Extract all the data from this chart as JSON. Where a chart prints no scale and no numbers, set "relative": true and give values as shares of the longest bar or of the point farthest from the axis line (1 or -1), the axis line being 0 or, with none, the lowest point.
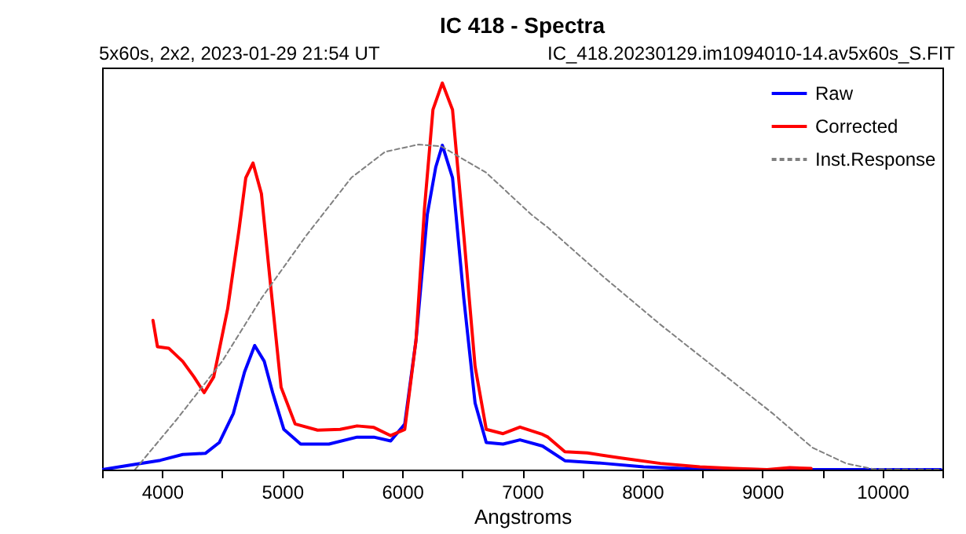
{
  "chart_data": {
    "type": "line",
    "title": "IC 418 - Spectra",
    "subtitle": "5x60s, 2x2, 2023-01-29 21:54 UT",
    "annotations": [
      "IC_418.20230129.im1094010-14.av5x60s_S.FIT"
    ],
    "xlabel": "Angstroms",
    "relative": true,
    "xlim": [
      3500,
      10500
    ],
    "xticks": [
      {
        "value": 3500,
        "label": null
      },
      4000,
      {
        "value": 4500,
        "label": null
      },
      5000,
      {
        "value": 5500,
        "label": null
      },
      6000,
      {
        "value": 6500,
        "label": null
      },
      7000,
      {
        "value": 7500,
        "label": null
      },
      8000,
      {
        "value": 8500,
        "label": null
      },
      9000,
      {
        "value": 9500,
        "label": null
      },
      10000,
      {
        "value": 10500,
        "label": null
      }
    ],
    "tick_labels": "x",
    "legend": "top right",
    "marker": "none",
    "grid": false,
    "series": [
      {
        "name": "Raw",
        "color": "#0000ff",
        "line_style": "solid",
        "x": [
          3500,
          3704,
          3985,
          4171,
          4360,
          4476,
          4593,
          4687,
          4771,
          4851,
          4921,
          5014,
          5154,
          5389,
          5624,
          5764,
          5904,
          6021,
          6115,
          6209,
          6279,
          6334,
          6419,
          6513,
          6607,
          6700,
          6840,
          6981,
          7169,
          7355,
          7683,
          8011,
          8479,
          8994,
          10487
        ],
        "values": [
          0,
          0.01,
          0.024,
          0.039,
          0.042,
          0.07,
          0.145,
          0.253,
          0.321,
          0.28,
          0.199,
          0.104,
          0.066,
          0.066,
          0.084,
          0.084,
          0.074,
          0.118,
          0.335,
          0.66,
          0.782,
          0.839,
          0.755,
          0.443,
          0.172,
          0.07,
          0.066,
          0.077,
          0.061,
          0.023,
          0.016,
          0.007,
          0.001,
          0,
          0
        ]
      },
      {
        "name": "Corrected",
        "color": "#ff0000",
        "line_style": "solid",
        "x": [
          3924,
          3961,
          4055,
          4171,
          4265,
          4350,
          4430,
          4546,
          4640,
          4697,
          4757,
          4827,
          4897,
          4991,
          5108,
          5295,
          5483,
          5624,
          5764,
          5904,
          6021,
          6115,
          6185,
          6256,
          6334,
          6419,
          6513,
          6607,
          6700,
          6840,
          6981,
          7169,
          7214,
          7355,
          7542,
          7823,
          8151,
          8479,
          8760,
          9040,
          9228,
          9406
        ],
        "values": [
          0.386,
          0.318,
          0.314,
          0.28,
          0.24,
          0.199,
          0.24,
          0.416,
          0.619,
          0.755,
          0.793,
          0.714,
          0.497,
          0.213,
          0.118,
          0.102,
          0.104,
          0.113,
          0.109,
          0.088,
          0.104,
          0.335,
          0.674,
          0.931,
          1,
          0.931,
          0.606,
          0.267,
          0.104,
          0.093,
          0.11,
          0.091,
          0.084,
          0.046,
          0.043,
          0.03,
          0.016,
          0.007,
          0.003,
          0,
          0.005,
          0.003
        ]
      },
      {
        "name": "Inst.Response",
        "color": "#808080",
        "line_style": "dashed",
        "x": [
          3774,
          4125,
          4500,
          4827,
          5202,
          5576,
          5857,
          6138,
          6326,
          6700,
          7074,
          7214,
          7683,
          8151,
          8620,
          9087,
          9416,
          9697,
          9930,
          10487
        ],
        "values": [
          0,
          0.131,
          0.28,
          0.443,
          0.606,
          0.755,
          0.822,
          0.841,
          0.836,
          0.768,
          0.66,
          0.626,
          0.497,
          0.375,
          0.26,
          0.145,
          0.057,
          0.016,
          0.001,
          0
        ]
      }
    ]
  }
}
